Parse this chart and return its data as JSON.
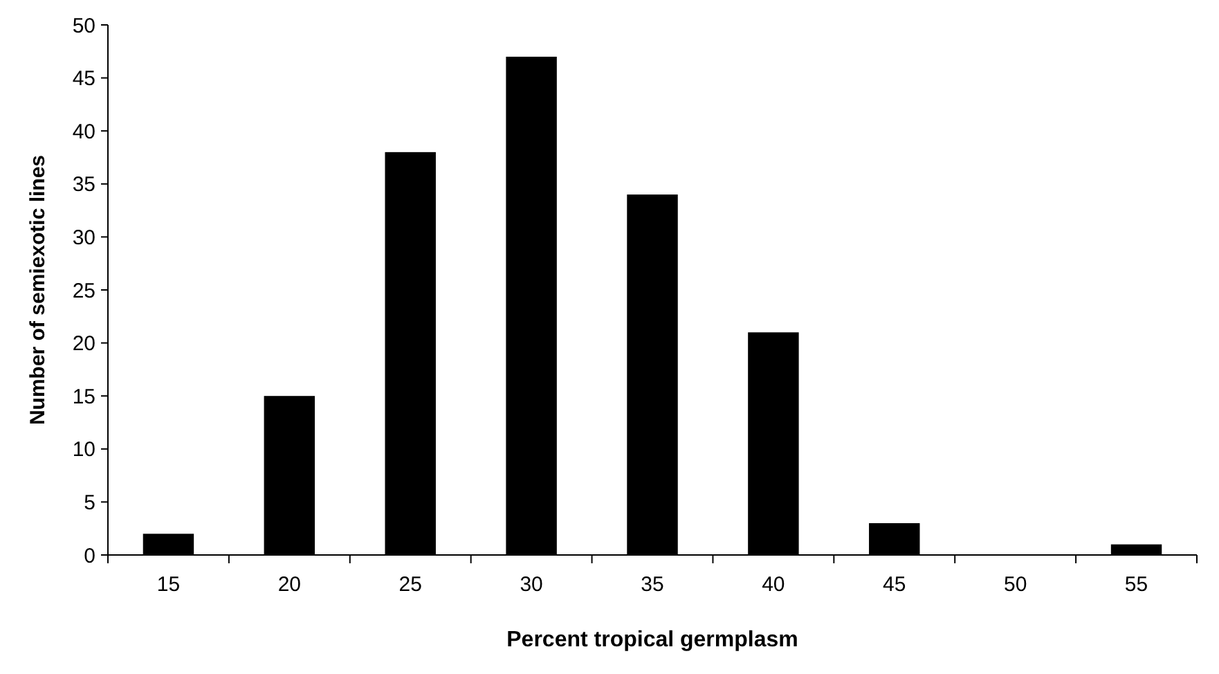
{
  "chart_data": {
    "type": "bar",
    "xlabel": "Percent tropical germplasm",
    "ylabel": "Number of semiexotic lines",
    "categories": [
      "15",
      "20",
      "25",
      "30",
      "35",
      "40",
      "45",
      "50",
      "55"
    ],
    "values": [
      2,
      15,
      38,
      47,
      34,
      21,
      3,
      0,
      1
    ],
    "color": "#000000",
    "ylim": [
      0,
      50
    ],
    "yticks": [
      0,
      5,
      10,
      15,
      20,
      25,
      30,
      35,
      40,
      45,
      50
    ],
    "grid": false
  }
}
